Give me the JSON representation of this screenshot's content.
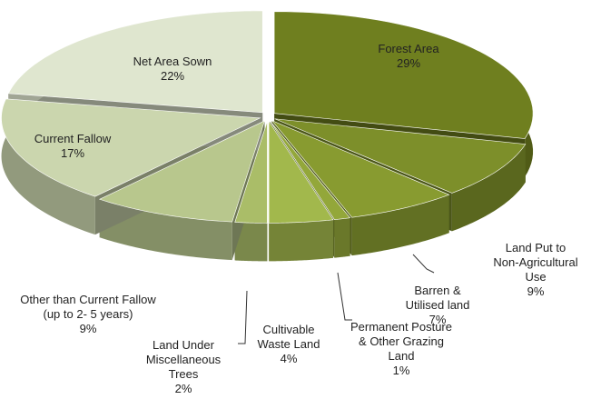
{
  "chart_data": {
    "type": "pie",
    "categories": [
      "Forest Area",
      "Land Put to Non-Agricultural Use",
      "Barren & Utilised land",
      "Permanent Posture & Other Grazing Land",
      "Cultivable Waste Land",
      "Land Under Miscellaneous Trees",
      "Other than Current Fallow (up to 2- 5 years)",
      "Current Fallow",
      "Net Area Sown"
    ],
    "values": [
      29,
      9,
      7,
      1,
      4,
      2,
      9,
      17,
      22
    ],
    "value_labels": [
      "29%",
      "9%",
      "7%",
      "1%",
      "4%",
      "2%",
      "9%",
      "17%",
      "22%"
    ],
    "colors": [
      "#6f7f1f",
      "#7d8f2a",
      "#889b30",
      "#93a73a",
      "#a2b84c",
      "#aabd68",
      "#b8c78d",
      "#cbd6ae",
      "#dfe6cf"
    ]
  }
}
